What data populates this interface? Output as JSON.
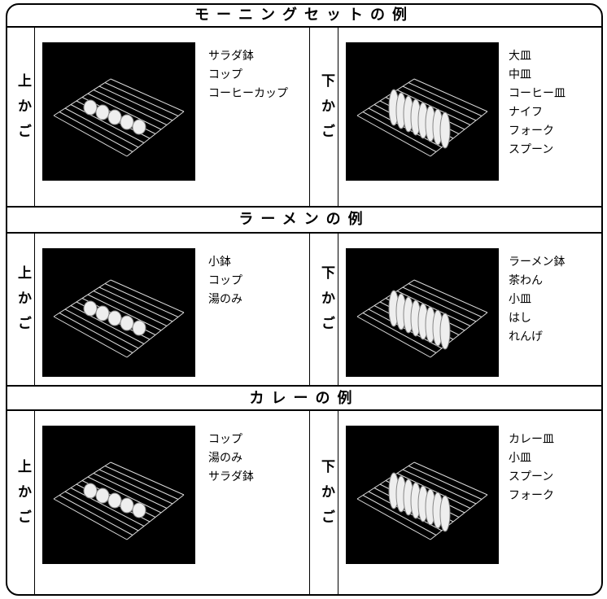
{
  "sections": [
    {
      "title": "モーニングセットの例",
      "upper": {
        "label": "上かご",
        "items": [
          "サラダ鉢",
          "コップ",
          "コーヒーカップ"
        ]
      },
      "lower": {
        "label": "下かご",
        "items": [
          "大皿",
          "中皿",
          "コーヒー皿",
          "ナイフ",
          "フォーク",
          "スプーン"
        ]
      }
    },
    {
      "title": "ラーメンの例",
      "upper": {
        "label": "上かご",
        "items": [
          "小鉢",
          "コップ",
          "湯のみ"
        ]
      },
      "lower": {
        "label": "下かご",
        "items": [
          "ラーメン鉢",
          "茶わん",
          "小皿",
          "はし",
          "れんげ"
        ]
      }
    },
    {
      "title": "カレーの例",
      "upper": {
        "label": "上かご",
        "items": [
          "コップ",
          "湯のみ",
          "サラダ鉢"
        ]
      },
      "lower": {
        "label": "下かご",
        "items": [
          "カレー皿",
          "小皿",
          "スプーン",
          "フォーク"
        ]
      }
    }
  ]
}
